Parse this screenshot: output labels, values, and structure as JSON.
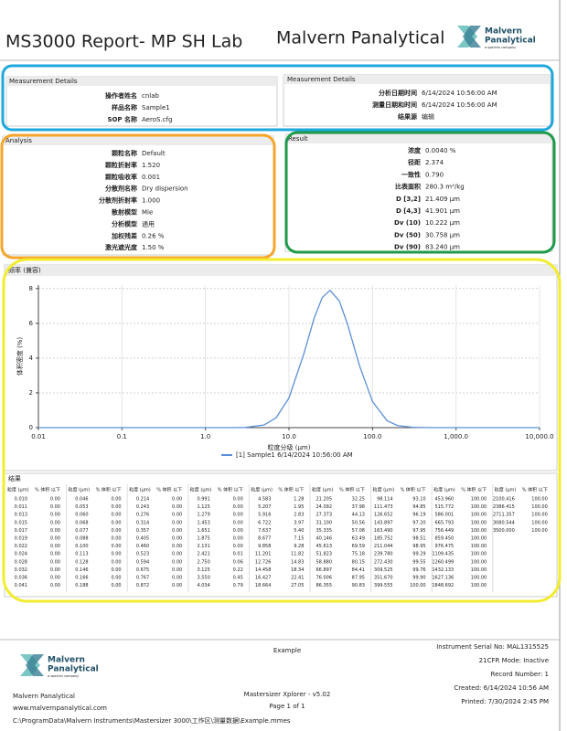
{
  "header": {
    "title": "MS3000 Report- MP SH Lab",
    "brand": "Malvern Panalytical"
  },
  "logo": {
    "line1": "Malvern",
    "line2": "Panalytical",
    "line3": "a spectris company"
  },
  "measurement_left": {
    "title": "Measurement Details",
    "rows": [
      [
        "操作者姓名",
        "cnlab"
      ],
      [
        "样品名称",
        "Sample1"
      ],
      [
        "SOP 名称",
        "AeroS.cfg"
      ]
    ]
  },
  "measurement_right": {
    "title": "Measurement Details",
    "rows": [
      [
        "分析日期时间",
        "6/14/2024 10:56:00 AM"
      ],
      [
        "测量日期和时间",
        "6/14/2024 10:56:00 AM"
      ],
      [
        "结果源",
        "编辑"
      ]
    ]
  },
  "analysis": {
    "title": "Analysis",
    "rows": [
      [
        "颗粒名称",
        "Default"
      ],
      [
        "颗粒折射率",
        "1.520"
      ],
      [
        "颗粒吸收率",
        "0.001"
      ],
      [
        "分散剂名称",
        "Dry dispersion"
      ],
      [
        "分散剂折射率",
        "1.000"
      ],
      [
        "散射模型",
        "Mie"
      ],
      [
        "分析模型",
        "通用"
      ],
      [
        "加权残差",
        "0.26 %"
      ],
      [
        "激光遮光度",
        "1.50 %"
      ]
    ]
  },
  "result": {
    "title": "Result",
    "rows": [
      [
        "浓度",
        "0.0040 %"
      ],
      [
        "径距",
        "2.374"
      ],
      [
        "一致性",
        "0.790"
      ],
      [
        "比表面积",
        "280.3 m²/kg"
      ],
      [
        "D [3,2]",
        "21.409 µm"
      ],
      [
        "D [4,3]",
        "41.901 µm"
      ],
      [
        "Dv (10)",
        "10.222 µm"
      ],
      [
        "Dv (50)",
        "30.758 µm"
      ],
      [
        "Dv (90)",
        "83.240 µm"
      ]
    ]
  },
  "chart_data": {
    "type": "line",
    "title": "频率 (兼容)",
    "x_label": "粒度分级 (µm)",
    "y_label": "体积密度 (%)",
    "x": [
      0.01,
      1,
      2,
      3,
      5,
      7,
      10,
      15,
      20,
      25,
      31,
      40,
      50,
      70,
      100,
      150,
      200,
      300,
      500,
      10000
    ],
    "series": [
      {
        "name": "[1] Sample1 6/14/2024 10:56:00 AM",
        "color": "#5b8fd6",
        "values": [
          0,
          0,
          0,
          0.01,
          0.15,
          0.56,
          1.71,
          4.22,
          6.29,
          7.48,
          7.9,
          7.29,
          5.98,
          3.55,
          1.5,
          0.39,
          0.12,
          0.02,
          0,
          0
        ]
      }
    ],
    "xlim": [
      0.01,
      10000
    ],
    "xticks": [
      0.01,
      0.1,
      {
        "value": 1,
        "label": "1.0"
      },
      {
        "value": 10,
        "label": "10.0"
      },
      {
        "value": 100,
        "label": "100.0"
      },
      {
        "value": 1000,
        "label": "1,000.0"
      },
      {
        "value": 10000,
        "label": "10,000.0"
      }
    ],
    "ylim": [
      0,
      8.2
    ],
    "yticks": [
      0,
      2,
      4,
      6,
      8
    ],
    "log_x": true,
    "grid": true
  },
  "table": {
    "title": "结果",
    "headers": [
      "粒度 (µm)",
      "% 体积 以下"
    ],
    "groups": [
      [
        [
          "0.010",
          "0.00"
        ],
        [
          "0.011",
          "0.00"
        ],
        [
          "0.013",
          "0.00"
        ],
        [
          "0.015",
          "0.00"
        ],
        [
          "0.017",
          "0.00"
        ],
        [
          "0.019",
          "0.00"
        ],
        [
          "0.022",
          "0.00"
        ],
        [
          "0.024",
          "0.00"
        ],
        [
          "0.028",
          "0.00"
        ],
        [
          "0.032",
          "0.00"
        ],
        [
          "0.036",
          "0.00"
        ],
        [
          "0.041",
          "0.00"
        ]
      ],
      [
        [
          "0.046",
          "0.00"
        ],
        [
          "0.053",
          "0.00"
        ],
        [
          "0.060",
          "0.00"
        ],
        [
          "0.068",
          "0.00"
        ],
        [
          "0.077",
          "0.00"
        ],
        [
          "0.088",
          "0.00"
        ],
        [
          "0.100",
          "0.00"
        ],
        [
          "0.113",
          "0.00"
        ],
        [
          "0.128",
          "0.00"
        ],
        [
          "0.146",
          "0.00"
        ],
        [
          "0.166",
          "0.00"
        ],
        [
          "0.188",
          "0.00"
        ]
      ],
      [
        [
          "0.214",
          "0.00"
        ],
        [
          "0.243",
          "0.00"
        ],
        [
          "0.276",
          "0.00"
        ],
        [
          "0.314",
          "0.00"
        ],
        [
          "0.357",
          "0.00"
        ],
        [
          "0.405",
          "0.00"
        ],
        [
          "0.460",
          "0.00"
        ],
        [
          "0.523",
          "0.00"
        ],
        [
          "0.594",
          "0.00"
        ],
        [
          "0.675",
          "0.00"
        ],
        [
          "0.767",
          "0.00"
        ],
        [
          "0.872",
          "0.00"
        ]
      ],
      [
        [
          "0.991",
          "0.00"
        ],
        [
          "1.125",
          "0.00"
        ],
        [
          "1.279",
          "0.00"
        ],
        [
          "1.453",
          "0.00"
        ],
        [
          "1.651",
          "0.00"
        ],
        [
          "1.875",
          "0.00"
        ],
        [
          "2.131",
          "0.00"
        ],
        [
          "2.421",
          "0.01"
        ],
        [
          "2.750",
          "0.06"
        ],
        [
          "3.125",
          "0.22"
        ],
        [
          "3.550",
          "0.45"
        ],
        [
          "4.034",
          "0.79"
        ]
      ],
      [
        [
          "4.583",
          "1.28"
        ],
        [
          "5.207",
          "1.95"
        ],
        [
          "5.916",
          "2.83"
        ],
        [
          "6.722",
          "3.97"
        ],
        [
          "7.637",
          "5.40"
        ],
        [
          "8.677",
          "7.15"
        ],
        [
          "9.858",
          "9.28"
        ],
        [
          "11.201",
          "11.82"
        ],
        [
          "12.726",
          "14.83"
        ],
        [
          "14.458",
          "18.34"
        ],
        [
          "16.427",
          "22.41"
        ],
        [
          "18.664",
          "27.05"
        ]
      ],
      [
        [
          "21.205",
          "32.25"
        ],
        [
          "24.092",
          "37.98"
        ],
        [
          "27.373",
          "44.13"
        ],
        [
          "31.100",
          "50.56"
        ],
        [
          "35.335",
          "57.08"
        ],
        [
          "40.146",
          "63.49"
        ],
        [
          "45.613",
          "69.59"
        ],
        [
          "51.823",
          "75.18"
        ],
        [
          "58.880",
          "80.15"
        ],
        [
          "66.897",
          "84.41"
        ],
        [
          "76.006",
          "87.95"
        ],
        [
          "86.355",
          "90.83"
        ]
      ],
      [
        [
          "98.114",
          "93.10"
        ],
        [
          "111.473",
          "94.85"
        ],
        [
          "126.652",
          "96.19"
        ],
        [
          "143.897",
          "97.20"
        ],
        [
          "163.490",
          "97.95"
        ],
        [
          "185.752",
          "98.51"
        ],
        [
          "211.044",
          "98.95"
        ],
        [
          "239.780",
          "99.29"
        ],
        [
          "272.430",
          "99.55"
        ],
        [
          "309.525",
          "99.76"
        ],
        [
          "351.670",
          "99.90"
        ],
        [
          "399.555",
          "100.00"
        ]
      ],
      [
        [
          "453.960",
          "100.00"
        ],
        [
          "515.772",
          "100.00"
        ],
        [
          "586.001",
          "100.00"
        ],
        [
          "665.793",
          "100.00"
        ],
        [
          "756.449",
          "100.00"
        ],
        [
          "859.450",
          "100.00"
        ],
        [
          "976.475",
          "100.00"
        ],
        [
          "1109.435",
          "100.00"
        ],
        [
          "1260.499",
          "100.00"
        ],
        [
          "1432.133",
          "100.00"
        ],
        [
          "1627.136",
          "100.00"
        ],
        [
          "1848.692",
          "100.00"
        ]
      ],
      [
        [
          "2100.416",
          "100.00"
        ],
        [
          "2386.415",
          "100.00"
        ],
        [
          "2711.357",
          "100.00"
        ],
        [
          "3080.544",
          "100.00"
        ],
        [
          "3500.000",
          "100.00"
        ]
      ]
    ]
  },
  "footer": {
    "center_title": "Example",
    "company": "Malvern Panalytical",
    "website": "www.malvernpanalytical.com",
    "path": "C:\\ProgramData\\Malvern Instruments\\Mastersizer 3000\\工作区\\测量数据\\Example.mmes",
    "software": "Mastersizer Xplorer - v5.02",
    "page": "Page 1 of 1",
    "right": [
      "Instrument Serial No: MAL1315525",
      "21CFR Mode: Inactive",
      "Record Number: 1",
      "Created: 6/14/2024 10:56 AM",
      "Printed: 7/30/2024 2:45 PM"
    ]
  }
}
